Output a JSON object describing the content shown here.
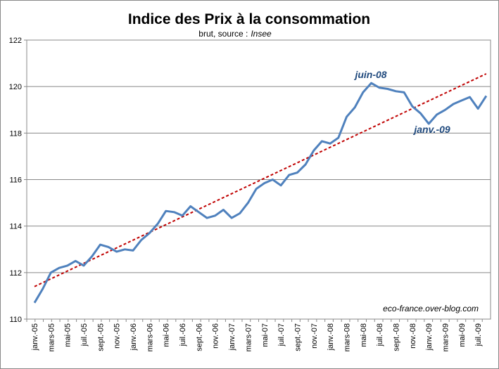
{
  "chart_data": {
    "type": "line",
    "title": "Indice des Prix à la consommation",
    "subtitle": "brut, source :",
    "source": "Insee",
    "watermark": "eco-france.over-blog.com",
    "annotations": [
      "juin-08",
      "janv.-09"
    ],
    "categories": [
      "janv.-05",
      null,
      "mars-05",
      null,
      "mai-05",
      null,
      "juil.-05",
      null,
      "sept.-05",
      null,
      "nov.-05",
      null,
      "janv.-06",
      null,
      "mars-06",
      null,
      "mai-06",
      null,
      "juil.-06",
      null,
      "sept.-06",
      null,
      "nov.-06",
      null,
      "janv.-07",
      null,
      "mars-07",
      null,
      "mai-07",
      null,
      "juil.-07",
      null,
      "sept.-07",
      null,
      "nov.-07",
      null,
      "janv.-08",
      null,
      "mars-08",
      null,
      "mai-08",
      null,
      "juil.-08",
      null,
      "sept.-08",
      null,
      "nov.-08",
      null,
      "janv.-09",
      null,
      "mars-09",
      null,
      "mai-09",
      null,
      "juil.-09",
      null
    ],
    "series": [
      {
        "color": "#4f81bd",
        "values": [
          110.7,
          111.3,
          112.0,
          112.2,
          112.3,
          112.5,
          112.3,
          112.7,
          113.2,
          113.1,
          112.9,
          113.0,
          112.95,
          113.4,
          113.7,
          114.1,
          114.65,
          114.6,
          114.45,
          114.85,
          114.6,
          114.35,
          114.45,
          114.7,
          114.35,
          114.55,
          115.0,
          115.6,
          115.85,
          116.0,
          115.75,
          116.2,
          116.3,
          116.65,
          117.25,
          117.65,
          117.55,
          117.8,
          118.7,
          119.1,
          119.75,
          120.15,
          119.95,
          119.9,
          119.8,
          119.75,
          119.15,
          118.85,
          118.4,
          118.8,
          119.0,
          119.25,
          119.4,
          119.55,
          119.05,
          119.6
        ]
      }
    ],
    "trendline": {
      "color": "#c00000",
      "start": 111.4,
      "end": 120.55
    },
    "ylim": [
      110,
      122
    ],
    "yticks": [
      110,
      112,
      114,
      116,
      118,
      120,
      122
    ],
    "grid": true
  }
}
